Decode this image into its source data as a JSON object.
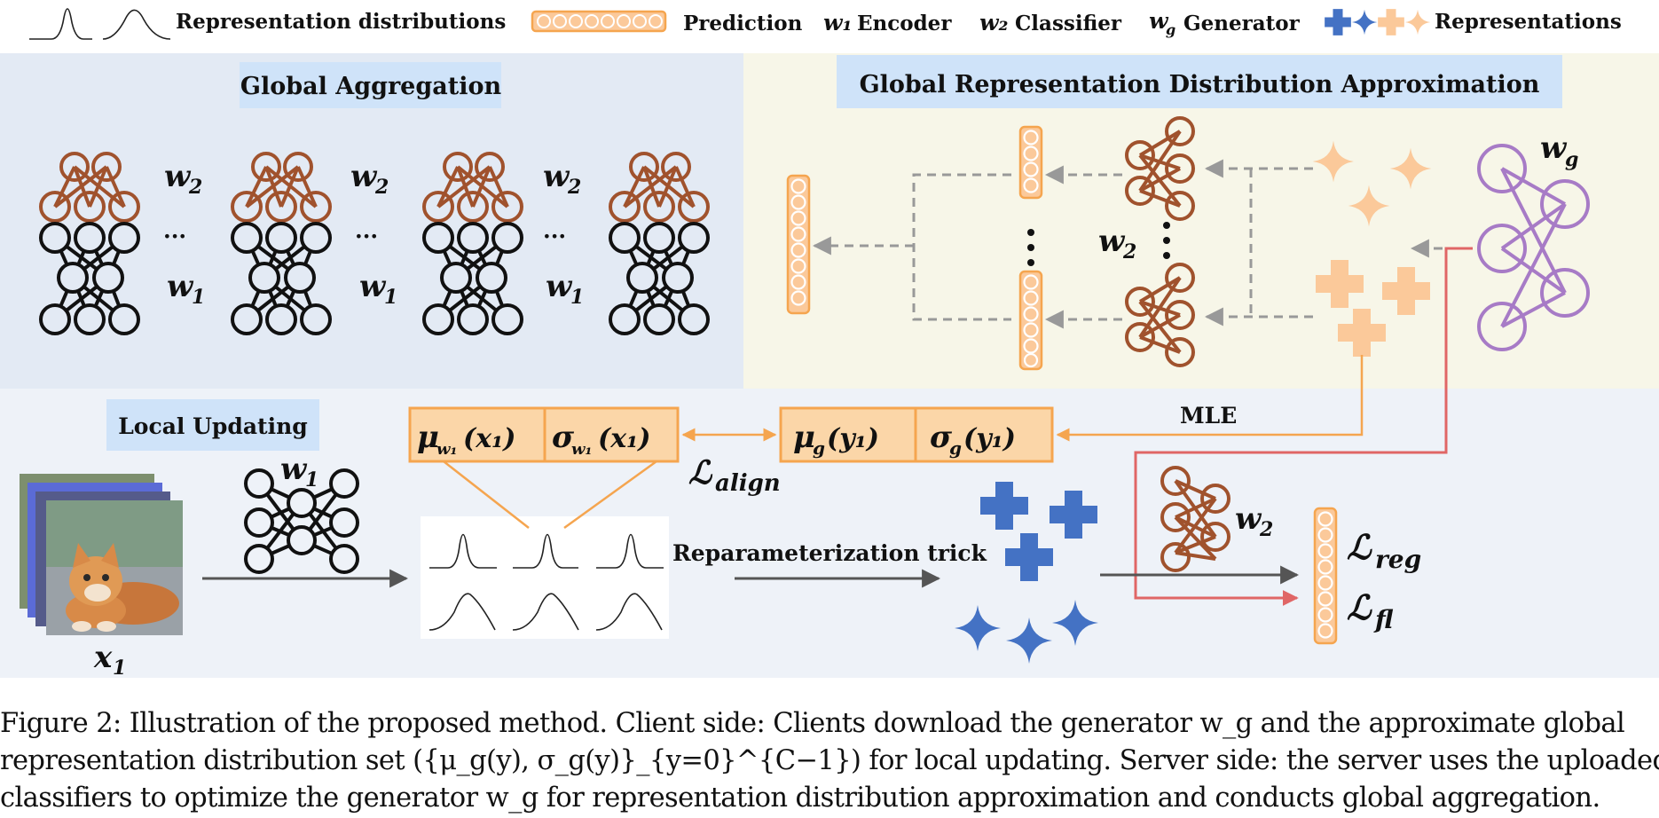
{
  "legend": {
    "distributions": "Representation distributions",
    "prediction": "Prediction",
    "encoder_sym": "w₁",
    "encoder": "Encoder",
    "classifier_sym": "w₂",
    "classifier": "Classifier",
    "generator_sym": "w",
    "generator_sub": "g",
    "generator": "Generator",
    "representations": "Representations"
  },
  "panels": {
    "global_aggregation": "Global Aggregation",
    "global_approx": "Global Representation Distribution Approximation",
    "local_updating": "Local Updating"
  },
  "symbols": {
    "w2": "w",
    "w2_sub": "2",
    "w1": "w",
    "w1_sub": "1",
    "wg": "w",
    "wg_sub": "g",
    "x1": "x",
    "x1_sub": "1",
    "ellipsis": "···"
  },
  "boxes": {
    "mu_w1": "μ",
    "mu_w1_sub": "w₁",
    "mu_w1_arg": "(x₁)",
    "sigma_w1": "σ",
    "sigma_w1_sub": "w₁",
    "sigma_w1_arg": "(x₁)",
    "mu_g": "μ",
    "mu_g_sub": "g",
    "mu_g_arg": "(y₁)",
    "sigma_g": "σ",
    "sigma_g_sub": "g",
    "sigma_g_arg": "(y₁)"
  },
  "losses": {
    "align": "ℒ",
    "align_sub": "align",
    "reg": "ℒ",
    "reg_sub": "reg",
    "fl": "ℒ",
    "fl_sub": "fl"
  },
  "labels": {
    "mle": "MLE",
    "reparam": "Reparameterization trick"
  },
  "colors": {
    "brown": "#a0522d",
    "purple": "#a77bc6",
    "blue": "#4472c4",
    "peach": "#fbc99a",
    "orange": "#f5a54f",
    "red": "#e06666",
    "gray_arrow": "#999999",
    "panel_blue": "#e3eaf4",
    "panel_cream": "#f7f6e8",
    "panel_light": "#eef2f8",
    "title_bg": "#cfe3f9"
  },
  "caption": {
    "line1": "Figure 2: Illustration of the proposed method. Client side: Clients download the generator w_g and the approximate global",
    "line2": "representation distribution set ({μ_g(y), σ_g(y)}_{y=0}^{C−1}) for local updating. Server side: the server uses the uploaded local",
    "line3": "classifiers to optimize the generator w_g for representation distribution approximation and conducts global aggregation."
  }
}
